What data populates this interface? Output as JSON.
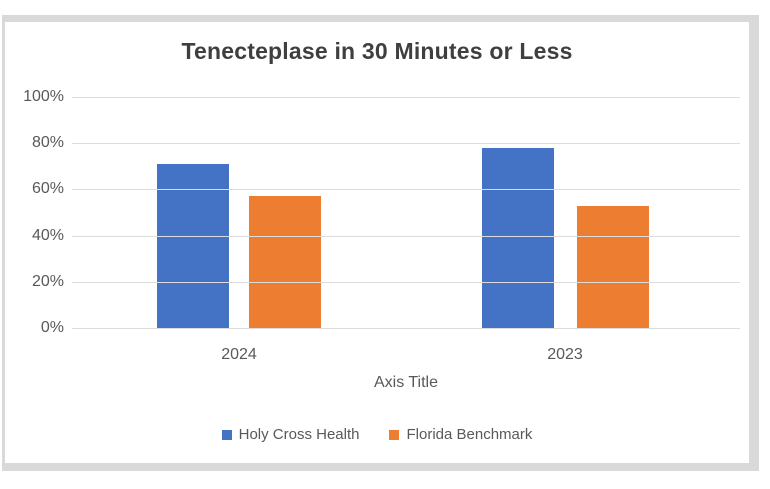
{
  "chart_data": {
    "type": "bar",
    "title": "Tenecteplase in 30 Minutes or Less",
    "categories": [
      "2024",
      "2023"
    ],
    "series": [
      {
        "name": "Holy Cross Health",
        "color": "#4472C4",
        "values": [
          71,
          78
        ]
      },
      {
        "name": "Florida Benchmark",
        "color": "#ED7D31",
        "values": [
          57,
          53
        ]
      }
    ],
    "xlabel": "Axis Title",
    "ylabel": "",
    "ylim": [
      0,
      100
    ],
    "ytick_labels": [
      "0%",
      "20%",
      "40%",
      "60%",
      "80%",
      "100%"
    ],
    "ytick_values": [
      0,
      20,
      40,
      60,
      80,
      100
    ],
    "grid": true,
    "legend_position": "bottom"
  },
  "styles": {
    "title_color": "#3f3f3f",
    "axis_text_color": "#595959",
    "gridline_color": "#dcdcdc",
    "frame_border_color": "#d9d9d9",
    "background_color": "#ffffff"
  }
}
